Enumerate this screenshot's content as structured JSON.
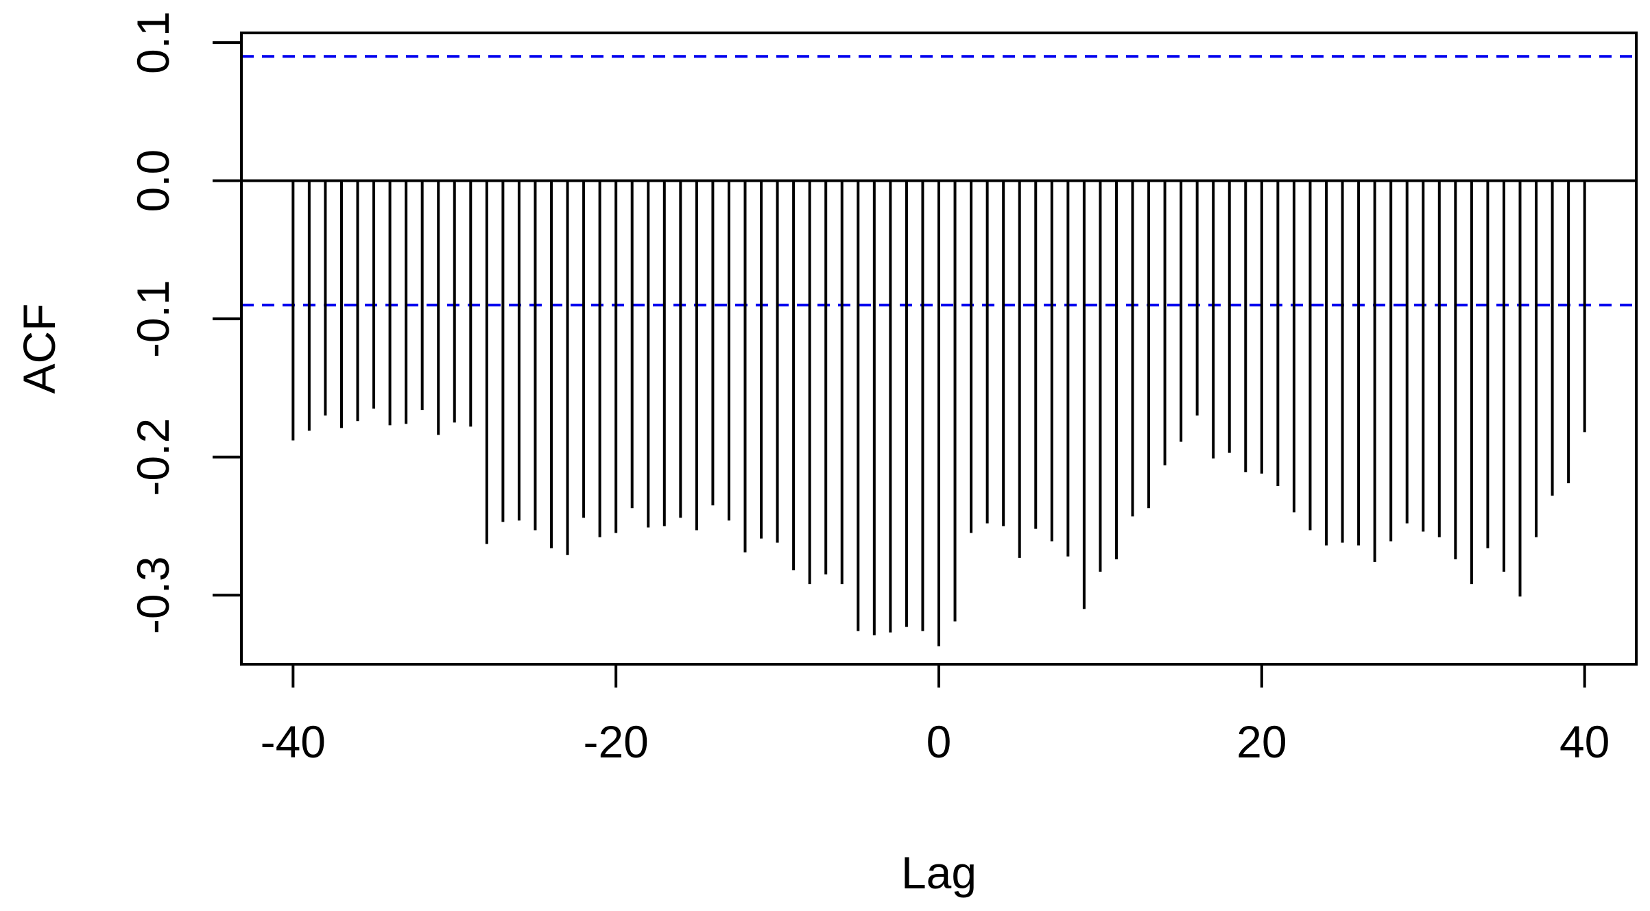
{
  "chart_data": {
    "type": "bar",
    "title": "",
    "xlabel": "Lag",
    "ylabel": "ACF",
    "xlim": [
      -43.2,
      43.2
    ],
    "ylim": [
      -0.35,
      0.107
    ],
    "x_ticks": [
      -40,
      -20,
      0,
      20,
      40
    ],
    "x_tick_labels": [
      "-40",
      "-20",
      "0",
      "20",
      "40"
    ],
    "y_ticks": [
      -0.3,
      -0.2,
      -0.1,
      0.0,
      0.1
    ],
    "y_tick_labels": [
      "-0.3",
      "-0.2",
      "-0.1",
      "0.0",
      "0.1"
    ],
    "zero_line": 0,
    "confidence_bounds": [
      0.09,
      -0.09
    ],
    "confidence_color": "#0000ee",
    "bar_color": "#000000",
    "grid": false,
    "lags": [
      -40,
      -39,
      -38,
      -37,
      -36,
      -35,
      -34,
      -33,
      -32,
      -31,
      -30,
      -29,
      -28,
      -27,
      -26,
      -25,
      -24,
      -23,
      -22,
      -21,
      -20,
      -19,
      -18,
      -17,
      -16,
      -15,
      -14,
      -13,
      -12,
      -11,
      -10,
      -9,
      -8,
      -7,
      -6,
      -5,
      -4,
      -3,
      -2,
      -1,
      0,
      1,
      2,
      3,
      4,
      5,
      6,
      7,
      8,
      9,
      10,
      11,
      12,
      13,
      14,
      15,
      16,
      17,
      18,
      19,
      20,
      21,
      22,
      23,
      24,
      25,
      26,
      27,
      28,
      29,
      30,
      31,
      32,
      33,
      34,
      35,
      36,
      37,
      38,
      39,
      40
    ],
    "values": [
      -0.188,
      -0.181,
      -0.17,
      -0.179,
      -0.174,
      -0.165,
      -0.177,
      -0.176,
      -0.166,
      -0.184,
      -0.175,
      -0.178,
      -0.263,
      -0.247,
      -0.246,
      -0.253,
      -0.266,
      -0.271,
      -0.244,
      -0.258,
      -0.255,
      -0.237,
      -0.251,
      -0.25,
      -0.244,
      -0.253,
      -0.235,
      -0.246,
      -0.269,
      -0.259,
      -0.262,
      -0.282,
      -0.292,
      -0.285,
      -0.292,
      -0.326,
      -0.329,
      -0.327,
      -0.323,
      -0.326,
      -0.337,
      -0.319,
      -0.255,
      -0.248,
      -0.25,
      -0.273,
      -0.252,
      -0.261,
      -0.272,
      -0.31,
      -0.283,
      -0.274,
      -0.243,
      -0.237,
      -0.206,
      -0.189,
      -0.17,
      -0.201,
      -0.197,
      -0.211,
      -0.212,
      -0.221,
      -0.24,
      -0.253,
      -0.264,
      -0.262,
      -0.264,
      -0.276,
      -0.261,
      -0.248,
      -0.254,
      -0.258,
      -0.274,
      -0.292,
      -0.266,
      -0.283,
      -0.301,
      -0.258,
      -0.228,
      -0.219,
      -0.182
    ]
  }
}
